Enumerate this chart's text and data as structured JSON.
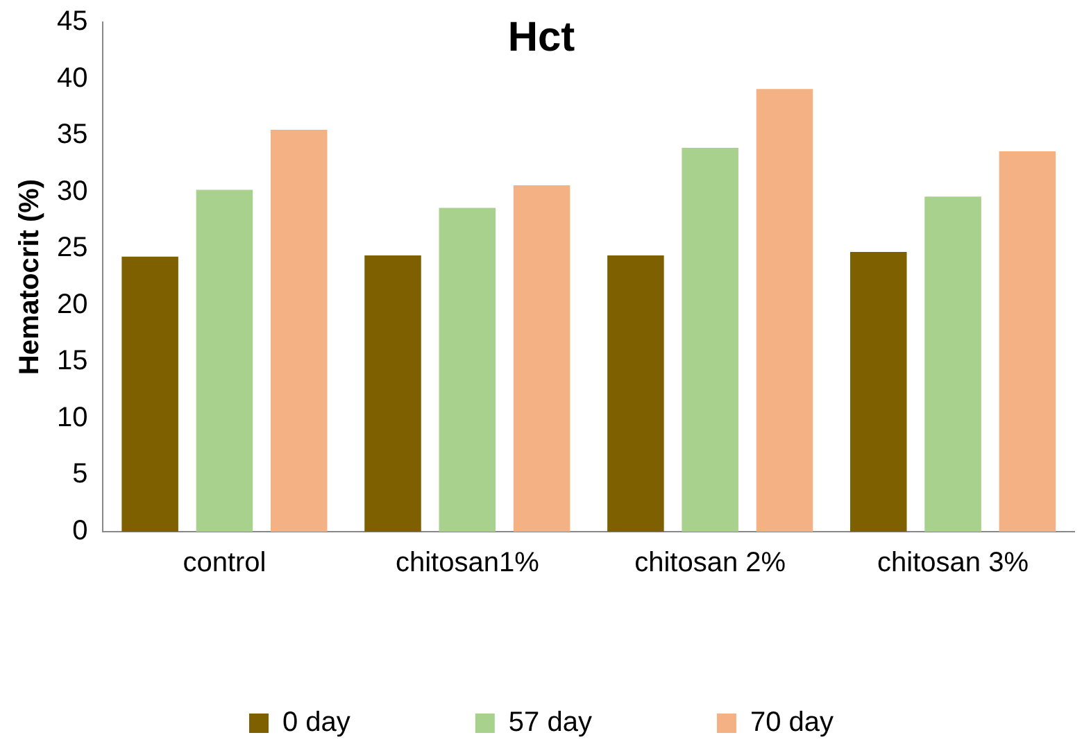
{
  "chart_data": {
    "type": "bar",
    "title": "Hct",
    "ylabel": "Hematocrit (%)",
    "categories": [
      "control",
      "chitosan1%",
      "chitosan 2%",
      "chitosan 3%"
    ],
    "series": [
      {
        "name": "0 day",
        "color": "#7f6000",
        "values": [
          24.3,
          24.4,
          24.4,
          24.7
        ]
      },
      {
        "name": "57 day",
        "color": "#a9d18e",
        "values": [
          30.2,
          28.6,
          33.9,
          29.6
        ]
      },
      {
        "name": "70 day",
        "color": "#f4b183",
        "values": [
          35.5,
          30.6,
          39.1,
          33.6
        ]
      }
    ],
    "ylim": [
      0,
      45
    ],
    "yticks": [
      0,
      5,
      10,
      15,
      20,
      25,
      30,
      35,
      40,
      45
    ],
    "grid": false,
    "legend": "bottom"
  }
}
